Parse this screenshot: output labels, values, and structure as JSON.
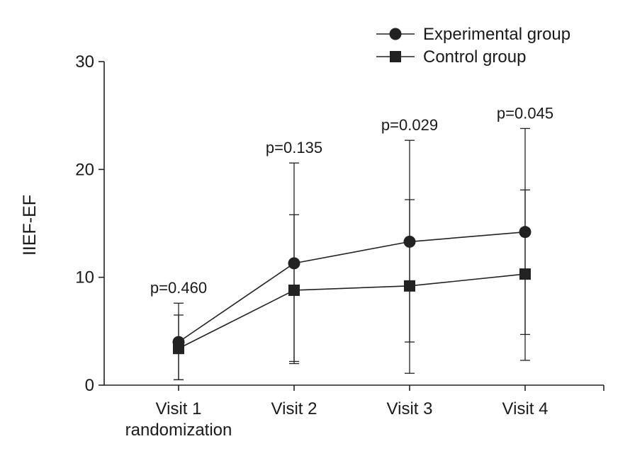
{
  "chart_data": {
    "type": "line",
    "ylabel": "IIEF-EF",
    "xlabel": "",
    "ylim": [
      0,
      30
    ],
    "yticks": [
      0,
      10,
      20,
      30
    ],
    "grid": false,
    "legend_position": "top-right",
    "categories": [
      [
        "Visit 1",
        "randomization"
      ],
      [
        "Visit 2"
      ],
      [
        "Visit 3"
      ],
      [
        "Visit 4"
      ]
    ],
    "series": [
      {
        "name": "Experimental group",
        "marker": "circle",
        "values": [
          4.0,
          11.3,
          13.3,
          14.2
        ],
        "error_low": [
          0.5,
          2.2,
          1.1,
          2.3
        ],
        "error_high": [
          7.6,
          20.6,
          22.7,
          23.8
        ]
      },
      {
        "name": "Control group",
        "marker": "square",
        "values": [
          3.4,
          8.8,
          9.2,
          10.3
        ],
        "error_low": [
          0.5,
          2.0,
          4.0,
          4.7
        ],
        "error_high": [
          6.5,
          15.8,
          17.2,
          18.1
        ]
      }
    ],
    "annotations": [
      "p=0.460",
      "p=0.135",
      "p=0.029",
      "p=0.045"
    ]
  }
}
